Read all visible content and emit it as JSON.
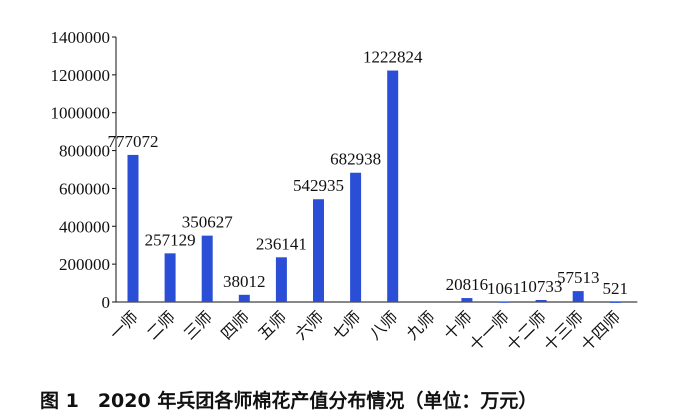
{
  "caption": "图 1　2020 年兵团各师棉花产值分布情况（单位：万元）",
  "chart_data": {
    "type": "bar",
    "title": "",
    "xlabel": "",
    "ylabel": "",
    "categories": [
      "一师",
      "二师",
      "三师",
      "四师",
      "五师",
      "六师",
      "七师",
      "八师",
      "九师",
      "十师",
      "十一师",
      "十二师",
      "十三师",
      "十四师"
    ],
    "values": [
      777072,
      257129,
      350627,
      38012,
      236141,
      542935,
      682938,
      1222824,
      0,
      20816,
      1061,
      10733,
      57513,
      521
    ],
    "data_labels": [
      "777072",
      "257129",
      "350627",
      "38012",
      "236141",
      "542935",
      "682938",
      "1222824",
      "",
      "20816",
      "1061",
      "10733",
      "57513",
      "521"
    ],
    "ylim": [
      0,
      1400000
    ],
    "yticks": [
      0,
      200000,
      400000,
      600000,
      800000,
      1000000,
      1200000,
      1400000
    ],
    "ytick_labels": [
      "0",
      "200000",
      "400000",
      "600000",
      "800000",
      "1000000",
      "1200000",
      "1400000"
    ],
    "bar_color": "#2a4fd6",
    "grid": false,
    "legend": "none"
  }
}
